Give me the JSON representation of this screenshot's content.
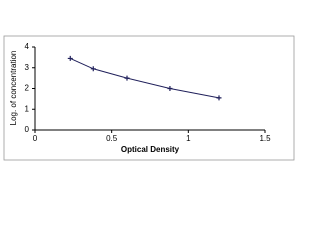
{
  "chart_data": {
    "type": "line",
    "x_label": "Optical Density",
    "y_label": "Log. of concentration",
    "x": [
      0.23,
      0.38,
      0.6,
      0.88,
      1.2
    ],
    "series": [
      {
        "color": "#1f1f5a",
        "values": [
          3.45,
          2.95,
          2.5,
          2.0,
          1.55
        ]
      }
    ],
    "xlim": [
      0,
      1.5
    ],
    "xticks": [
      0,
      0.5,
      1,
      1.5
    ],
    "ylim": [
      0,
      4
    ],
    "yticks": [
      0,
      1,
      2,
      3,
      4
    ]
  }
}
